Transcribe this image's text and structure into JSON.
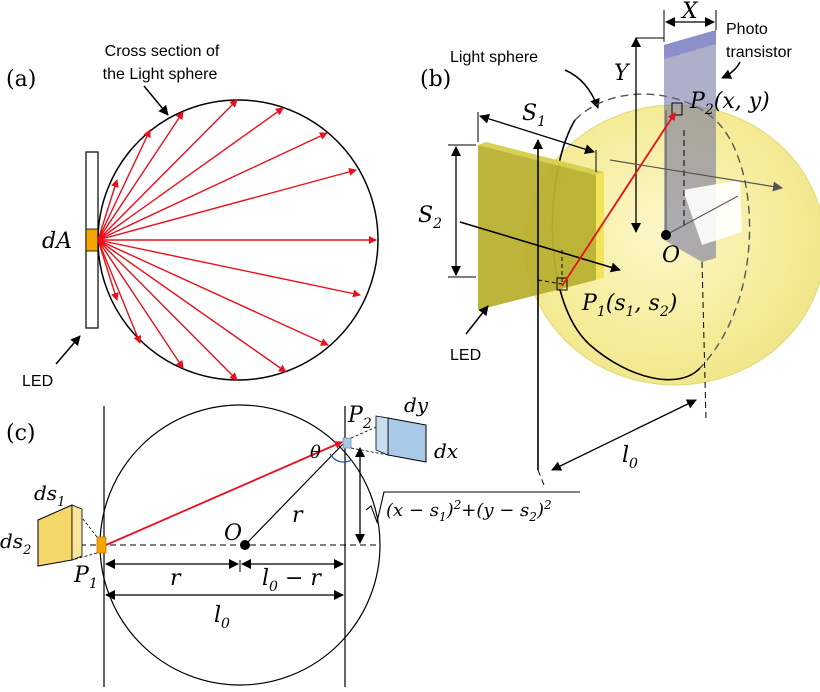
{
  "panel_a": {
    "tag": "(a)",
    "cross_section_line1": "Cross section of",
    "cross_section_line2": "the Light sphere",
    "dA": "dA",
    "led": "LED"
  },
  "panel_b": {
    "tag": "(b)",
    "light_sphere": "Light sphere",
    "photo_line1": "Photo",
    "photo_line2": "transistor",
    "X": "X",
    "Y": "Y",
    "S1": "S",
    "S1_sub": "1",
    "S2": "S",
    "S2_sub": "2",
    "P2_label": "P",
    "P2_sub": "2",
    "P2_coords": "(x, y)",
    "O": "O",
    "P1_label": "P",
    "P1_sub": "1",
    "P1_coords_open": "(s",
    "P1_coords_s1sub": "1",
    "P1_coords_mid": ", s",
    "P1_coords_s2sub": "2",
    "P1_coords_close": ")",
    "led": "LED",
    "l0": "l",
    "l0_sub": "0"
  },
  "panel_c": {
    "tag": "(c)",
    "P2": "P",
    "P2_sub": "2",
    "dy": "dy",
    "dx": "dx",
    "theta": "θ",
    "r": "r",
    "O": "O",
    "ds1": "ds",
    "ds1_sub": "1",
    "ds2": "ds",
    "ds2_sub": "2",
    "P1": "P",
    "P1_sub": "1",
    "r_bottom": "r",
    "l0_minus_r": "l",
    "l0_minus_r_sub": "0",
    "l0_minus_r_tail": " − r",
    "l0": "l",
    "l0_sub": "0",
    "sqrt_expr": "(x − s",
    "sqrt_s1_sub": "1",
    "sqrt_mid1": ")",
    "sqrt_sq1": "2",
    "sqrt_mid2": "+(y − s",
    "sqrt_s2_sub": "2",
    "sqrt_mid3": ")",
    "sqrt_sq2": "2"
  },
  "colors": {
    "ray": "#e8101c",
    "led_orange": "#f5a500",
    "led_yellow": "#f6d76a",
    "sphere_fill": "#f6ef9a",
    "panel_olive": "#b8b030",
    "photo_blue": "#a9c9e8",
    "photo_strip": "#8c8fc9"
  }
}
